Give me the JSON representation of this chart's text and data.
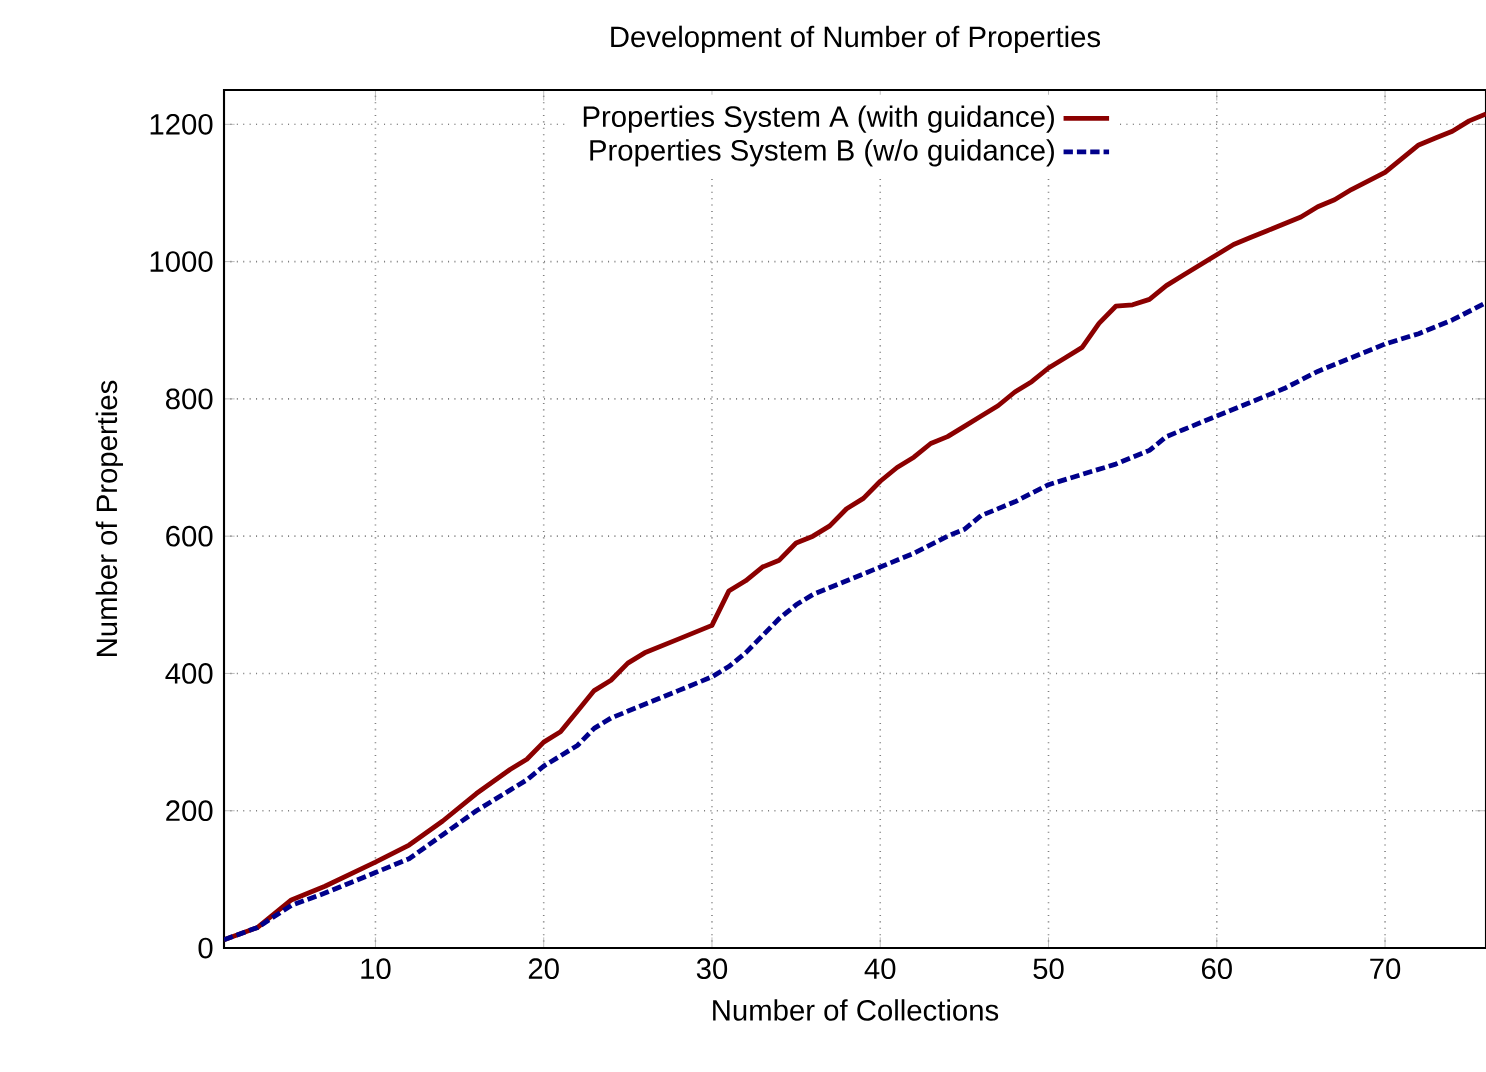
{
  "chart_data": {
    "type": "line",
    "title": "Development of Number of Properties",
    "xlabel": "Number of Collections",
    "ylabel": "Number of Properties",
    "xlim": [
      1,
      76
    ],
    "ylim": [
      0,
      1250
    ],
    "xticks": [
      10,
      20,
      30,
      40,
      50,
      60,
      70
    ],
    "yticks": [
      0,
      200,
      400,
      600,
      800,
      1000,
      1200
    ],
    "grid": true,
    "legend": "top right",
    "marker": "none",
    "series": [
      {
        "name": "Properties System A (with guidance)",
        "color": "#8b0000",
        "line_style": "solid",
        "x": [
          1,
          3,
          5,
          7,
          10,
          12,
          14,
          16,
          18,
          19,
          20,
          21,
          22,
          23,
          24,
          25,
          26,
          28,
          30,
          31,
          32,
          33,
          34,
          35,
          36,
          37,
          38,
          39,
          40,
          41,
          42,
          43,
          44,
          45,
          46,
          47,
          48,
          49,
          50,
          51,
          52,
          53,
          54,
          55,
          56,
          57,
          58,
          60,
          61,
          62,
          63,
          65,
          66,
          67,
          68,
          70,
          71,
          72,
          73,
          74,
          75,
          76
        ],
        "values": [
          12,
          30,
          70,
          90,
          125,
          150,
          185,
          225,
          260,
          275,
          300,
          315,
          345,
          375,
          390,
          415,
          430,
          450,
          470,
          520,
          535,
          555,
          565,
          590,
          600,
          615,
          640,
          655,
          680,
          700,
          715,
          735,
          745,
          760,
          775,
          790,
          810,
          825,
          845,
          860,
          875,
          910,
          935,
          937,
          945,
          965,
          980,
          1010,
          1025,
          1035,
          1045,
          1065,
          1080,
          1090,
          1105,
          1130,
          1150,
          1170,
          1180,
          1190,
          1205,
          1215
        ]
      },
      {
        "name": "Properties System B (w/o guidance)",
        "color": "#00008b",
        "line_style": "dashed",
        "x": [
          1,
          3,
          5,
          7,
          10,
          12,
          14,
          16,
          18,
          19,
          20,
          22,
          23,
          24,
          26,
          28,
          30,
          31,
          32,
          33,
          34,
          35,
          36,
          38,
          40,
          42,
          44,
          45,
          46,
          48,
          50,
          52,
          54,
          55,
          56,
          57,
          58,
          60,
          62,
          64,
          66,
          68,
          70,
          72,
          74,
          76
        ],
        "values": [
          12,
          30,
          62,
          80,
          110,
          130,
          165,
          200,
          230,
          245,
          265,
          295,
          320,
          335,
          355,
          375,
          395,
          410,
          430,
          455,
          480,
          500,
          515,
          535,
          555,
          575,
          600,
          610,
          630,
          650,
          675,
          690,
          705,
          715,
          725,
          745,
          755,
          775,
          795,
          815,
          840,
          860,
          880,
          895,
          915,
          940
        ]
      }
    ]
  }
}
